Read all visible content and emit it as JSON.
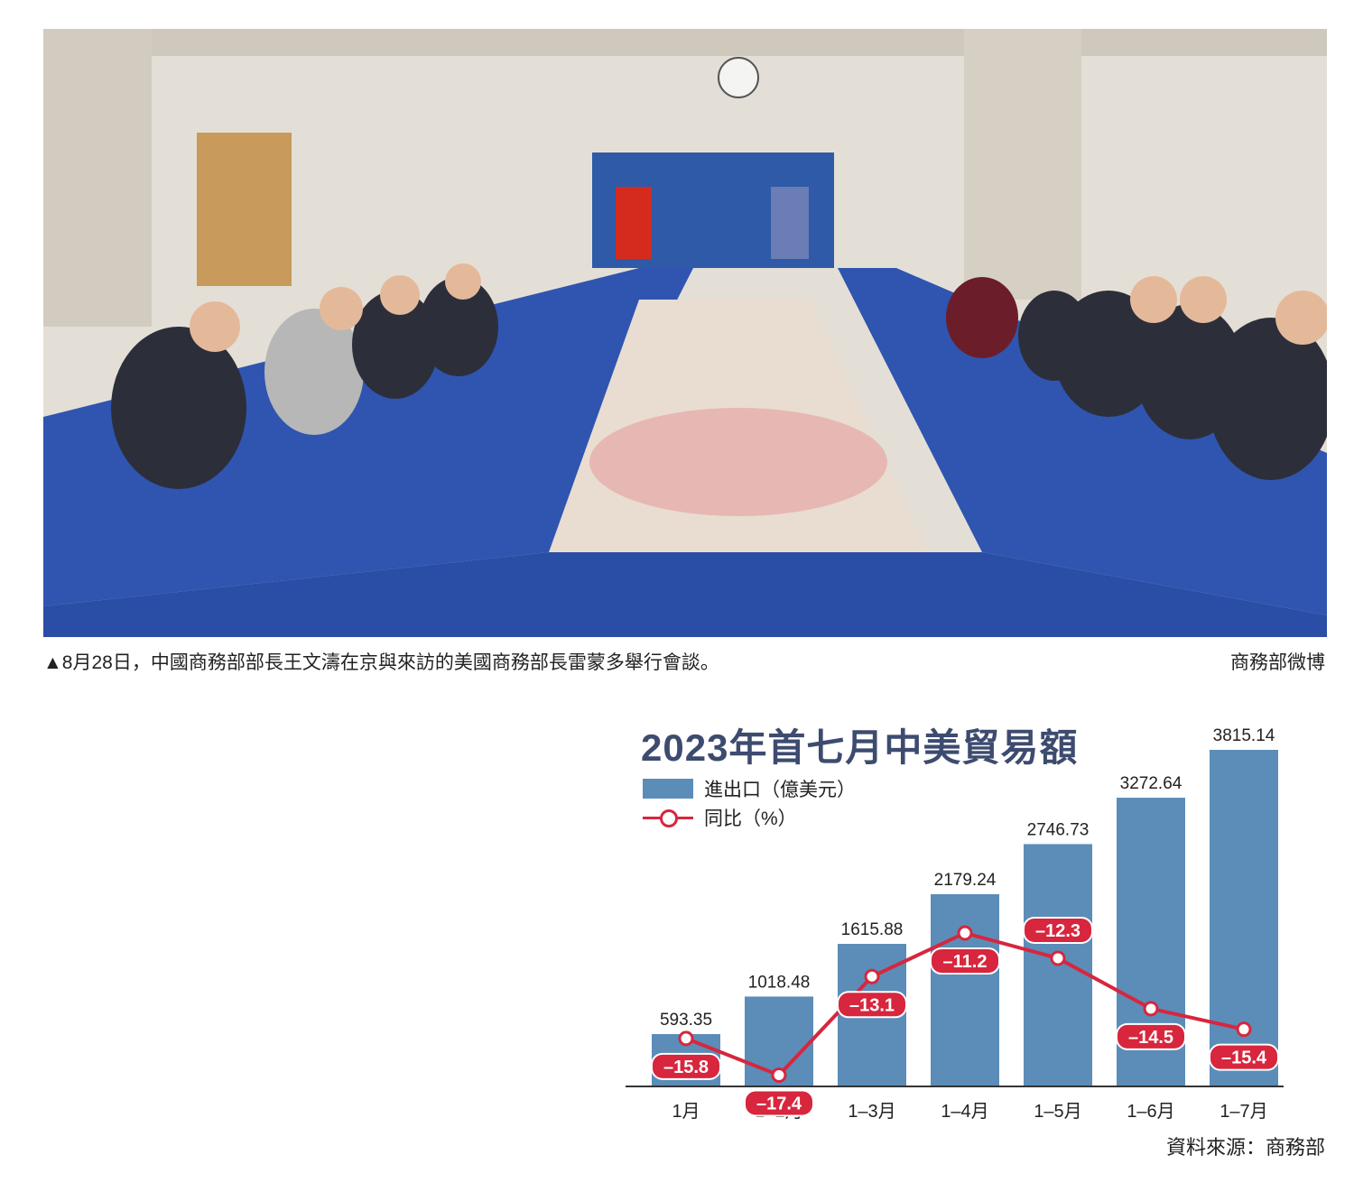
{
  "photo": {
    "description_icon": "meeting-photo",
    "caption": "▲8月28日，中國商務部部長王文濤在京與來訪的美國商務部長雷蒙多舉行會談。",
    "credit": "商務部微博"
  },
  "legend": {
    "bar_label": "進出口（億美元）",
    "line_label": "同比（%）"
  },
  "source": "資料來源：商務部",
  "colors": {
    "bar": "#5b8db8",
    "line": "#d7263d",
    "title": "#3d4b6f"
  },
  "chart_data": {
    "type": "bar",
    "title": "2023年首七月中美貿易額",
    "categories": [
      "1月",
      "1–2月",
      "1–3月",
      "1–4月",
      "1–5月",
      "1–6月",
      "1–7月"
    ],
    "series": [
      {
        "name": "進出口（億美元）",
        "type": "bar",
        "values": [
          593.35,
          1018.48,
          1615.88,
          2179.24,
          2746.73,
          3272.64,
          3815.14
        ],
        "labels": [
          "593.35",
          "1018.48",
          "1615.88",
          "2179.24",
          "2746.73",
          "3272.64",
          "3815.14"
        ]
      },
      {
        "name": "同比（%）",
        "type": "line",
        "values": [
          -15.8,
          -17.4,
          -13.1,
          -11.2,
          -12.3,
          -14.5,
          -15.4
        ],
        "labels": [
          "–15.8",
          "–17.4",
          "–13.1",
          "–11.2",
          "–12.3",
          "–14.5",
          "–15.4"
        ]
      }
    ],
    "legend": "top-left",
    "grid": false
  }
}
